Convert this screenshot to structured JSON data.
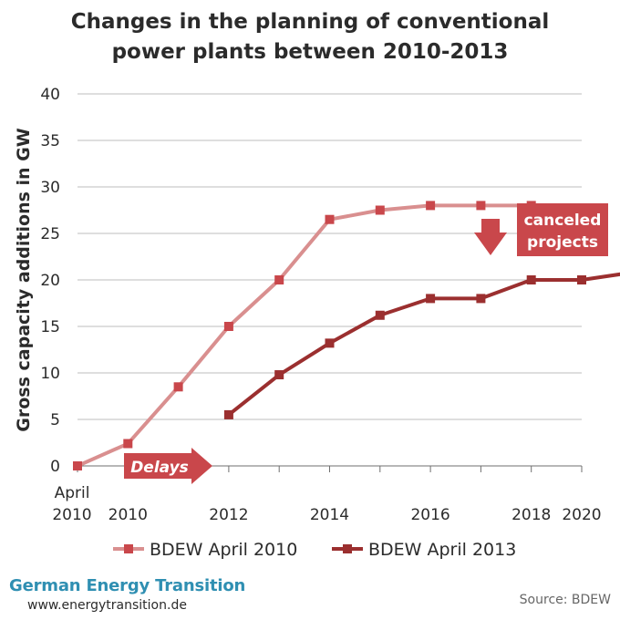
{
  "chart_data": {
    "type": "line",
    "title": [
      "Changes in the planning of conventional",
      "power plants between 2010-2013"
    ],
    "ylabel": "Gross capacity additions in GW",
    "ylim": [
      0,
      40
    ],
    "yticks": [
      0,
      5,
      10,
      15,
      20,
      25,
      30,
      35,
      40
    ],
    "xlim": [
      2010,
      2020
    ],
    "xticks": [
      {
        "x": 2010,
        "label": "2010",
        "label_top": "April"
      },
      {
        "x": 2011,
        "label": "2010"
      },
      {
        "x": 2013,
        "label": "2012"
      },
      {
        "x": 2015,
        "label": "2014"
      },
      {
        "x": 2017,
        "label": "2016"
      },
      {
        "x": 2019,
        "label": "2018"
      },
      {
        "x": 2021,
        "label": "2020"
      }
    ],
    "grid": true,
    "legend_position": "bottom",
    "series": [
      {
        "name": "BDEW April 2010",
        "color": "#d98f8f",
        "x": [
          2010,
          2011,
          2012,
          2013,
          2014,
          2015,
          2016,
          2017,
          2018,
          2019
        ],
        "values": [
          0,
          2.4,
          8.5,
          15,
          20,
          26.5,
          27.5,
          28,
          28,
          28
        ]
      },
      {
        "name": "BDEW April 2013",
        "color": "#9b2f2f",
        "x": [
          2013,
          2014,
          2015,
          2016,
          2017,
          2018,
          2019,
          2020,
          2021
        ],
        "values": [
          5.5,
          9.8,
          13.2,
          16.2,
          18,
          18,
          20,
          20,
          20.8
        ]
      }
    ],
    "annotations": {
      "delays": "Delays",
      "canceled": [
        "canceled",
        "projects"
      ]
    }
  },
  "footer": {
    "brand": "German Energy Transition",
    "url": "www.energytransition.de",
    "source": "Source: BDEW"
  },
  "colors": {
    "light_series": "#d98f8f",
    "dark_series": "#9b2f2f",
    "annotation": "#c9474b",
    "grid": "#bdbdbd",
    "brand": "#2f8fb2"
  }
}
